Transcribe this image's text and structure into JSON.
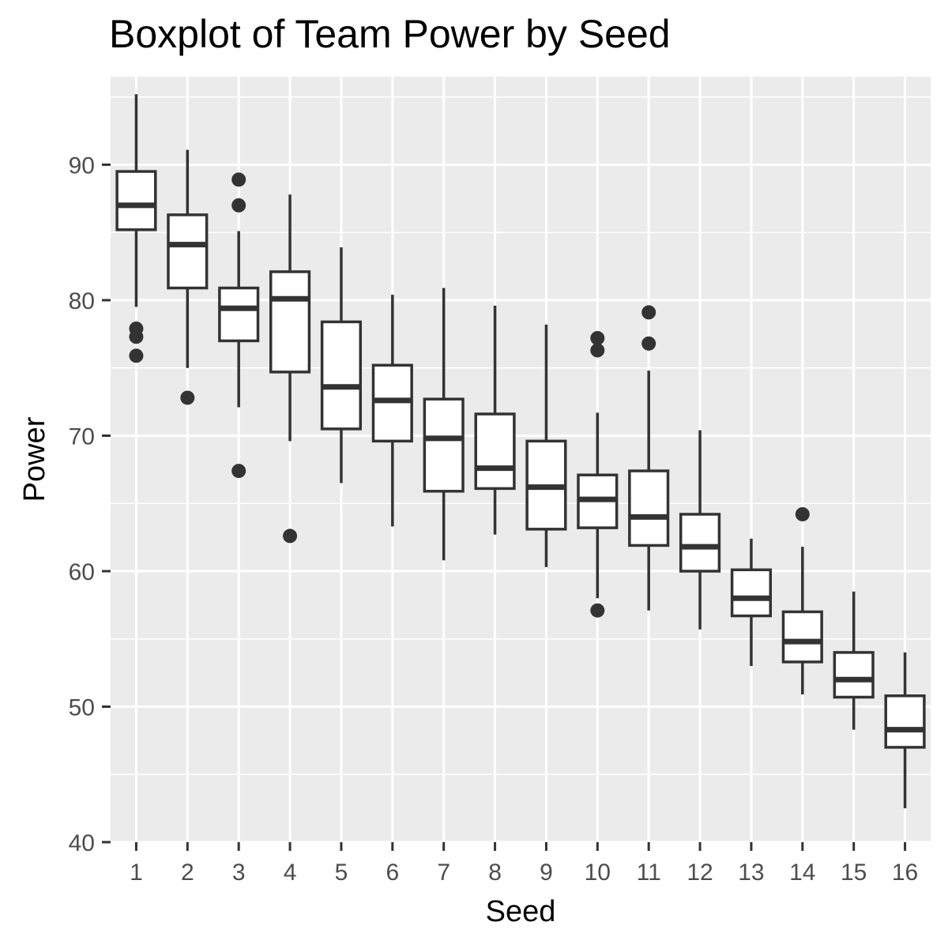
{
  "chart_data": {
    "type": "box",
    "title": "Boxplot of Team Power by Seed",
    "xlabel": "Seed",
    "ylabel": "Power",
    "ylim": [
      40,
      96.5
    ],
    "yticks": [
      40,
      50,
      60,
      70,
      80,
      90
    ],
    "grid": true,
    "categories": [
      "1",
      "2",
      "3",
      "4",
      "5",
      "6",
      "7",
      "8",
      "9",
      "10",
      "11",
      "12",
      "13",
      "14",
      "15",
      "16"
    ],
    "boxes": [
      {
        "min": 79.5,
        "q1": 85.2,
        "median": 87.0,
        "q3": 89.5,
        "max": 95.2,
        "outliers": [
          77.9,
          77.3,
          75.9
        ]
      },
      {
        "min": 75.0,
        "q1": 80.9,
        "median": 84.1,
        "q3": 86.3,
        "max": 91.1,
        "outliers": [
          72.8
        ]
      },
      {
        "min": 72.1,
        "q1": 77.0,
        "median": 79.4,
        "q3": 80.9,
        "max": 85.1,
        "outliers": [
          88.9,
          87.0,
          67.4
        ]
      },
      {
        "min": 69.6,
        "q1": 74.7,
        "median": 80.1,
        "q3": 82.1,
        "max": 87.8,
        "outliers": [
          62.6
        ]
      },
      {
        "min": 66.5,
        "q1": 70.5,
        "median": 73.6,
        "q3": 78.4,
        "max": 83.9,
        "outliers": []
      },
      {
        "min": 63.3,
        "q1": 69.6,
        "median": 72.6,
        "q3": 75.2,
        "max": 80.4,
        "outliers": []
      },
      {
        "min": 60.8,
        "q1": 65.9,
        "median": 69.8,
        "q3": 72.7,
        "max": 80.9,
        "outliers": []
      },
      {
        "min": 62.7,
        "q1": 66.1,
        "median": 67.6,
        "q3": 71.6,
        "max": 79.6,
        "outliers": []
      },
      {
        "min": 60.3,
        "q1": 63.1,
        "median": 66.2,
        "q3": 69.6,
        "max": 78.2,
        "outliers": []
      },
      {
        "min": 58.0,
        "q1": 63.2,
        "median": 65.3,
        "q3": 67.1,
        "max": 71.7,
        "outliers": [
          77.2,
          76.3,
          57.1
        ]
      },
      {
        "min": 57.1,
        "q1": 61.9,
        "median": 64.0,
        "q3": 67.4,
        "max": 74.8,
        "outliers": [
          79.1,
          76.8
        ]
      },
      {
        "min": 55.7,
        "q1": 60.0,
        "median": 61.8,
        "q3": 64.2,
        "max": 70.4,
        "outliers": []
      },
      {
        "min": 53.0,
        "q1": 56.7,
        "median": 58.0,
        "q3": 60.1,
        "max": 62.4,
        "outliers": []
      },
      {
        "min": 50.9,
        "q1": 53.3,
        "median": 54.8,
        "q3": 57.0,
        "max": 61.8,
        "outliers": [
          64.2
        ]
      },
      {
        "min": 48.3,
        "q1": 50.7,
        "median": 52.0,
        "q3": 54.0,
        "max": 58.5,
        "outliers": []
      },
      {
        "min": 42.5,
        "q1": 47.0,
        "median": 48.3,
        "q3": 50.8,
        "max": 54.0,
        "outliers": []
      }
    ],
    "colors": {
      "panel_background": "#EBEBEB",
      "grid": "#FFFFFF",
      "box_fill": "#FFFFFF",
      "box_line": "#333333",
      "outlier": "#333333",
      "tick_label": "#4D4D4D"
    }
  }
}
